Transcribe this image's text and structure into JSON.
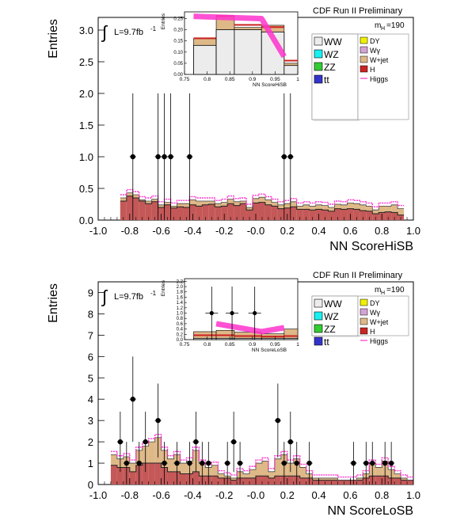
{
  "chart_data": [
    {
      "type": "histogram",
      "id": "top",
      "header": "CDF Run II Preliminary",
      "lumi": "L=9.7fb",
      "lumi_sup": "-1",
      "mass_label": "m",
      "mass_sub": "H",
      "mass_value": "=190",
      "ylabel": "Entries",
      "xlabel": "NN ScoreHiSB",
      "xlim": [
        -1.0,
        1.0
      ],
      "ylim": [
        0,
        3.2
      ],
      "xticks": [
        "-1.0",
        "-0.8",
        "-0.6",
        "-0.4",
        "-0.2",
        "-0.0",
        "0.2",
        "0.4",
        "0.6",
        "0.8",
        "1.0"
      ],
      "yticks": [
        "0.0",
        "0.5",
        "1.0",
        "1.5",
        "2.0",
        "2.5",
        "3.0"
      ],
      "legend_left": [
        "WW",
        "WZ",
        "ZZ",
        "tt"
      ],
      "legend_right": [
        "DY",
        "Wγ",
        "W+jet",
        "H",
        "Higgs"
      ],
      "colors": {
        "WW": "#ececec",
        "WZ": "#19f0f0",
        "ZZ": "#33cc33",
        "tt": "#3333cc",
        "DY": "#f0f000",
        "Wg": "#d4a3d4",
        "Wjet": "#deb887",
        "H": "#cc2222",
        "Higgs": "#ff33cc",
        "data": "#000000",
        "signal_fill": "#c05050"
      },
      "bins_x0": -0.86,
      "bin_width": 0.04,
      "background_total": [
        0.35,
        0.43,
        0.4,
        0.32,
        0.3,
        0.33,
        0.24,
        0.28,
        0.22,
        0.26,
        0.26,
        0.32,
        0.3,
        0.3,
        0.3,
        0.26,
        0.28,
        0.33,
        0.29,
        0.3,
        0.2,
        0.34,
        0.36,
        0.32,
        0.28,
        0.24,
        0.26,
        0.29,
        0.22,
        0.24,
        0.22,
        0.24,
        0.23,
        0.2,
        0.25,
        0.24,
        0.27,
        0.26,
        0.24,
        0.22,
        0.16,
        0.22,
        0.22,
        0.24,
        0.18
      ],
      "signal": [
        0.3,
        0.38,
        0.35,
        0.3,
        0.26,
        0.29,
        0.2,
        0.24,
        0.19,
        0.21,
        0.2,
        0.24,
        0.22,
        0.24,
        0.25,
        0.21,
        0.22,
        0.26,
        0.23,
        0.26,
        0.16,
        0.27,
        0.28,
        0.24,
        0.22,
        0.18,
        0.19,
        0.21,
        0.17,
        0.17,
        0.16,
        0.17,
        0.16,
        0.14,
        0.18,
        0.17,
        0.18,
        0.17,
        0.15,
        0.14,
        0.1,
        0.12,
        0.13,
        0.12,
        0.08
      ],
      "data_points": [
        {
          "x": -0.78,
          "y": 1,
          "err": 1.0
        },
        {
          "x": -0.62,
          "y": 1,
          "err": 1.0
        },
        {
          "x": -0.58,
          "y": 1,
          "err": 1.0
        },
        {
          "x": -0.54,
          "y": 1,
          "err": 1.0
        },
        {
          "x": -0.42,
          "y": 1,
          "err": 1.0
        },
        {
          "x": 0.18,
          "y": 1,
          "err": 1.0
        },
        {
          "x": 0.22,
          "y": 1,
          "err": 1.0
        }
      ],
      "inset": {
        "xlabel": "NN ScoreHiSB",
        "ylabel": "Entries",
        "xlim": [
          0.75,
          1.0
        ],
        "ylim": [
          0,
          0.28
        ],
        "xticks": [
          "0.75",
          "0.8",
          "0.85",
          "0.9",
          "0.95",
          "1"
        ],
        "yticks": [
          "0.00",
          "0.05",
          "0.10",
          "0.15",
          "0.20",
          "0.25"
        ],
        "bins": [
          {
            "x0": 0.77,
            "x1": 0.82,
            "ww": 0.13,
            "top": 0.16,
            "sig": 0.16
          },
          {
            "x0": 0.82,
            "x1": 0.86,
            "ww": 0.2,
            "top": 0.26,
            "sig": 0.26
          },
          {
            "x0": 0.86,
            "x1": 0.92,
            "ww": 0.2,
            "top": 0.21,
            "sig": 0.22
          },
          {
            "x0": 0.92,
            "x1": 0.97,
            "ww": 0.19,
            "top": 0.22,
            "sig": 0.21
          },
          {
            "x0": 0.97,
            "x1": 1.0,
            "ww": 0.04,
            "top": 0.05,
            "sig": 0.06
          }
        ],
        "higgs_band": [
          [
            0.77,
            0.26
          ],
          [
            0.92,
            0.25
          ],
          [
            0.97,
            0.08
          ]
        ]
      }
    },
    {
      "type": "histogram",
      "id": "bottom",
      "header": "CDF Run II Preliminary",
      "lumi": "L=9.7fb",
      "lumi_sup": "-1",
      "mass_label": "m",
      "mass_sub": "H",
      "mass_value": "=190",
      "ylabel": "Entries",
      "xlabel": "NN ScoreLoSB",
      "xlim": [
        -1.0,
        1.0
      ],
      "ylim": [
        0,
        9.5
      ],
      "xticks": [
        "-1.0",
        "-0.8",
        "-0.6",
        "-0.4",
        "-0.2",
        "-0.0",
        "0.2",
        "0.4",
        "0.6",
        "0.8",
        "1.0"
      ],
      "yticks": [
        "0",
        "1",
        "2",
        "3",
        "4",
        "5",
        "6",
        "7",
        "8",
        "9"
      ],
      "legend_left": [
        "WW",
        "WZ",
        "ZZ",
        "tt"
      ],
      "legend_right": [
        "DY",
        "Wγ",
        "W+jet",
        "H",
        "Higgs"
      ],
      "bins_x0": -0.92,
      "bin_width": 0.04,
      "background_total": [
        1.4,
        1.2,
        1.3,
        1.0,
        1.6,
        1.8,
        2.0,
        2.2,
        1.6,
        1.2,
        1.4,
        1.0,
        1.1,
        1.6,
        1.0,
        0.8,
        0.9,
        0.5,
        0.4,
        0.3,
        0.6,
        0.5,
        0.7,
        1.0,
        1.1,
        0.6,
        1.2,
        1.4,
        1.0,
        1.2,
        0.8,
        0.5,
        0.3,
        0.3,
        0.3,
        0.3,
        0.2,
        0.2,
        0.2,
        0.3,
        0.5,
        1.0,
        0.8,
        1.1,
        0.7,
        0.5,
        0.3,
        0.2
      ],
      "signal": [
        0.9,
        0.8,
        0.8,
        0.6,
        0.9,
        1.0,
        1.0,
        1.0,
        0.8,
        0.6,
        0.6,
        0.5,
        0.5,
        0.6,
        0.4,
        0.4,
        0.4,
        0.3,
        0.3,
        0.2,
        0.3,
        0.3,
        0.3,
        0.4,
        0.4,
        0.3,
        0.4,
        0.4,
        0.4,
        0.4,
        0.3,
        0.3,
        0.2,
        0.2,
        0.2,
        0.2,
        0.2,
        0.2,
        0.2,
        0.2,
        0.3,
        0.4,
        0.4,
        0.4,
        0.3,
        0.3,
        0.2,
        0.2
      ],
      "data_points": [
        {
          "x": -0.86,
          "y": 2
        },
        {
          "x": -0.82,
          "y": 1
        },
        {
          "x": -0.78,
          "y": 4
        },
        {
          "x": -0.74,
          "y": 1
        },
        {
          "x": -0.7,
          "y": 2
        },
        {
          "x": -0.62,
          "y": 3
        },
        {
          "x": -0.58,
          "y": 1
        },
        {
          "x": -0.5,
          "y": 1
        },
        {
          "x": -0.42,
          "y": 1
        },
        {
          "x": -0.38,
          "y": 2
        },
        {
          "x": -0.34,
          "y": 1
        },
        {
          "x": -0.3,
          "y": 1
        },
        {
          "x": -0.18,
          "y": 1
        },
        {
          "x": -0.14,
          "y": 2
        },
        {
          "x": -0.1,
          "y": 1
        },
        {
          "x": 0.14,
          "y": 3
        },
        {
          "x": 0.18,
          "y": 1
        },
        {
          "x": 0.22,
          "y": 2
        },
        {
          "x": 0.26,
          "y": 1
        },
        {
          "x": 0.34,
          "y": 1
        },
        {
          "x": 0.62,
          "y": 1
        },
        {
          "x": 0.7,
          "y": 1
        },
        {
          "x": 0.74,
          "y": 1
        },
        {
          "x": 0.82,
          "y": 1
        },
        {
          "x": 0.86,
          "y": 1
        }
      ],
      "inset": {
        "xlabel": "NN ScoreLoSB",
        "ylabel": "Entries",
        "xlim": [
          0.75,
          1.0
        ],
        "ylim": [
          0,
          2.3
        ],
        "xticks": [
          "0.75",
          "0.8",
          "0.85",
          "0.9",
          "0.95",
          "1"
        ],
        "yticks": [
          "0.0",
          "0.2",
          "0.4",
          "0.6",
          "0.8",
          "1.0",
          "1.2",
          "1.4",
          "1.6",
          "1.8",
          "2.0",
          "2.2"
        ],
        "bins": [
          {
            "x0": 0.77,
            "x1": 0.82,
            "ww": 0.05,
            "top": 0.3,
            "sig": 0.15
          },
          {
            "x0": 0.82,
            "x1": 0.86,
            "ww": 0.05,
            "top": 0.35,
            "sig": 0.15
          },
          {
            "x0": 0.86,
            "x1": 0.92,
            "ww": 0.05,
            "top": 0.28,
            "sig": 0.12
          },
          {
            "x0": 0.92,
            "x1": 0.97,
            "ww": 0.05,
            "top": 0.22,
            "sig": 0.1
          },
          {
            "x0": 0.97,
            "x1": 1.0,
            "ww": 0.05,
            "top": 0.4,
            "sig": 0.12
          }
        ],
        "higgs_band": [
          [
            0.82,
            0.6
          ],
          [
            0.92,
            0.3
          ],
          [
            0.97,
            0.45
          ]
        ],
        "data_points": [
          {
            "x": 0.81,
            "y": 1.0,
            "err": 1.0
          },
          {
            "x": 0.855,
            "y": 1.0,
            "err": 1.0
          },
          {
            "x": 0.905,
            "y": 1.0,
            "err": 1.0
          }
        ]
      }
    }
  ]
}
